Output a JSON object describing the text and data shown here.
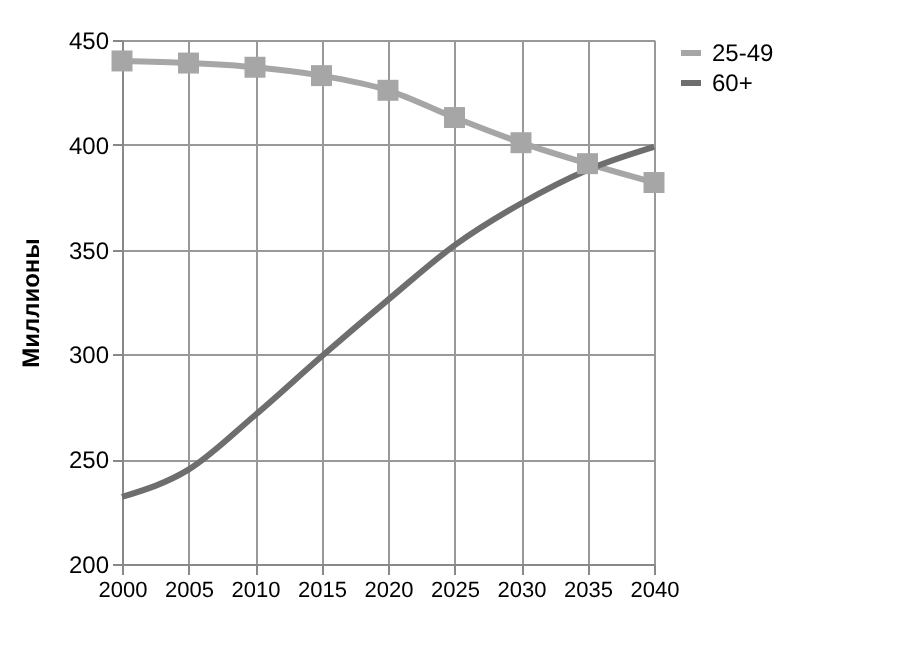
{
  "chart_data": {
    "type": "line",
    "ylabel": "Миллионы",
    "x": [
      2000,
      2005,
      2010,
      2015,
      2020,
      2025,
      2030,
      2035,
      2040
    ],
    "series": [
      {
        "name": "25-49",
        "color": "#a6a6a6",
        "marker": "square",
        "values": [
          440,
          439,
          437,
          433,
          426,
          413,
          401,
          391,
          382
        ]
      },
      {
        "name": "60+",
        "color": "#6e6e6e",
        "marker": "none",
        "values": [
          232,
          245,
          271,
          299,
          326,
          352,
          372,
          388,
          399
        ]
      }
    ],
    "xlim": [
      2000,
      2040
    ],
    "xticks": [
      2000,
      2005,
      2010,
      2015,
      2020,
      2025,
      2030,
      2035,
      2040
    ],
    "ylim": [
      200,
      450
    ],
    "yticks": [
      200,
      250,
      300,
      350,
      400,
      450
    ],
    "grid": true,
    "legend": "right",
    "line_style": "solid"
  }
}
